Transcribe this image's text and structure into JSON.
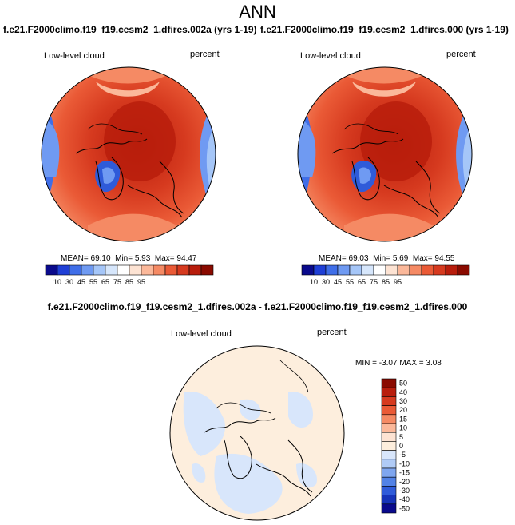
{
  "page_title": "ANN",
  "panels": [
    {
      "case": "f.e21.F2000climo.f19_f19.cesm2_1.dfires.002a (yrs 1-19)",
      "variable": "Low-level cloud",
      "units": "percent",
      "stats": {
        "mean_label": "MEAN=",
        "mean": "69.10",
        "min_label": "Min=",
        "min": "5.93",
        "max_label": "Max=",
        "max": "94.47"
      }
    },
    {
      "case": "f.e21.F2000climo.f19_f19.cesm2_1.dfires.000 (yrs 1-19)",
      "variable": "Low-level cloud",
      "units": "percent",
      "stats": {
        "mean_label": "MEAN=",
        "mean": "69.03",
        "min_label": "Min=",
        "min": "5.69",
        "max_label": "Max=",
        "max": "94.55"
      }
    }
  ],
  "colorbar_main": {
    "ticks": [
      "10",
      "30",
      "45",
      "55",
      "65",
      "75",
      "85",
      "95"
    ],
    "colors": [
      "#0a0a8c",
      "#1f3fd6",
      "#3f6ee8",
      "#6f9af2",
      "#a5c6f8",
      "#d6e6fb",
      "#ffffff",
      "#fde3d3",
      "#fbb89a",
      "#f58a64",
      "#ea5a36",
      "#d63a1f",
      "#b81d0c",
      "#8a0a00"
    ]
  },
  "difference": {
    "title": "f.e21.F2000climo.f19_f19.cesm2_1.dfires.002a - f.e21.F2000climo.f19_f19.cesm2_1.dfires.000",
    "variable": "Low-level cloud",
    "units": "percent",
    "min_label": "MIN =",
    "min": "-3.07",
    "max_label": "MAX =",
    "max": "3.08",
    "colorbar": {
      "ticks": [
        "50",
        "40",
        "30",
        "20",
        "15",
        "10",
        "5",
        "0",
        "-5",
        "-10",
        "-15",
        "-20",
        "-30",
        "-40",
        "-50"
      ],
      "colors": [
        "#8a0a00",
        "#b81d0c",
        "#d63a1f",
        "#ea5a36",
        "#f58a64",
        "#fbb89a",
        "#fde3d3",
        "#fdeedd",
        "#d8e6fb",
        "#b0cbf6",
        "#7fa6ef",
        "#5282e6",
        "#2f5bd9",
        "#1633b8",
        "#0a0a8c"
      ]
    }
  }
}
